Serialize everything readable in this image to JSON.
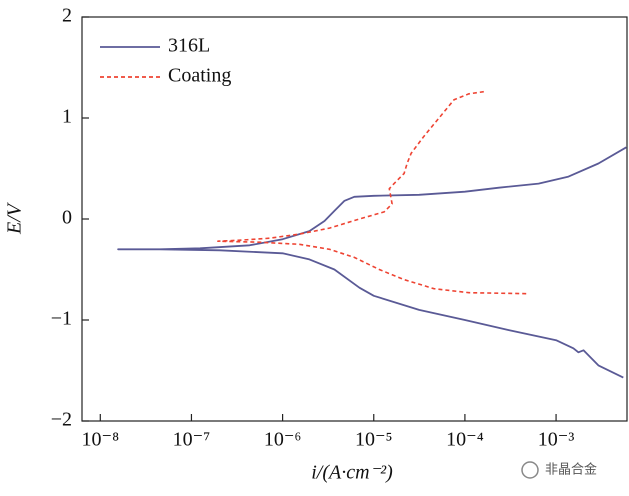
{
  "chart_data": {
    "type": "line",
    "xlabel": "i/(A·cm⁻²)",
    "ylabel": "E/V",
    "xscale": "log",
    "xlim": [
      6.3e-09,
      0.006
    ],
    "ylim": [
      -2,
      2
    ],
    "xticks": [
      {
        "value": 1e-08,
        "label": "10⁻⁸"
      },
      {
        "value": 1e-07,
        "label": "10⁻⁷"
      },
      {
        "value": 1e-06,
        "label": "10⁻⁶"
      },
      {
        "value": 1e-05,
        "label": "10⁻⁵"
      },
      {
        "value": 0.0001,
        "label": "10⁻⁴"
      },
      {
        "value": 0.001,
        "label": "10⁻³"
      }
    ],
    "yticks": [
      {
        "value": -2,
        "label": "−2"
      },
      {
        "value": -1,
        "label": "−1"
      },
      0,
      1,
      2
    ],
    "legend": "upper left",
    "annotation": "非晶合金",
    "series": [
      {
        "name": "316L",
        "color": "#5a5a96",
        "dash": "solid",
        "x": [
          0.00589,
          0.00291,
          0.00137,
          0.000644,
          0.000236,
          0.0001,
          3.14e-05,
          1e-05,
          6.12e-06,
          4.77e-06,
          3.7e-06,
          2.88e-06,
          1.97e-06,
          1e-06,
          4.35e-07,
          1.24e-07,
          4.53e-08,
          1.57e-08,
          4.53e-08,
          2.05e-07,
          1e-06,
          1.97e-06,
          3.7e-06,
          6.95e-06,
          1e-05,
          3.14e-05,
          0.0001,
          0.000303,
          0.001,
          0.00155,
          0.00176,
          0.002,
          0.00291,
          0.00547
        ],
        "values": [
          0.71,
          0.55,
          0.42,
          0.35,
          0.31,
          0.27,
          0.24,
          0.23,
          0.22,
          0.18,
          0.08,
          -0.02,
          -0.12,
          -0.2,
          -0.26,
          -0.29,
          -0.3,
          -0.3,
          -0.3,
          -0.31,
          -0.34,
          -0.4,
          -0.5,
          -0.68,
          -0.76,
          -0.9,
          -1.0,
          -1.1,
          -1.2,
          -1.28,
          -1.32,
          -1.3,
          -1.45,
          -1.57
        ]
      },
      {
        "name": "Coating",
        "color": "#ee4433",
        "dash": "dashed",
        "x": [
          0.000161,
          0.000111,
          7.59e-05,
          5.2e-05,
          3.56e-05,
          2.57e-05,
          2.32e-05,
          2.15e-05,
          1.67e-05,
          1.48e-05,
          1.59e-05,
          1.3e-05,
          6.95e-06,
          3.27e-06,
          1.53e-06,
          7.21e-07,
          3.39e-07,
          1.95e-07,
          5.61e-07,
          1.53e-06,
          3.27e-06,
          6.12e-06,
          1.15e-05,
          2.15e-05,
          4.58e-05,
          0.000111,
          0.0005
        ],
        "values": [
          1.26,
          1.24,
          1.18,
          1.0,
          0.82,
          0.65,
          0.55,
          0.45,
          0.35,
          0.3,
          0.15,
          0.07,
          0.0,
          -0.09,
          -0.15,
          -0.19,
          -0.21,
          -0.22,
          -0.23,
          -0.25,
          -0.3,
          -0.38,
          -0.5,
          -0.6,
          -0.69,
          -0.73,
          -0.74
        ]
      }
    ]
  }
}
